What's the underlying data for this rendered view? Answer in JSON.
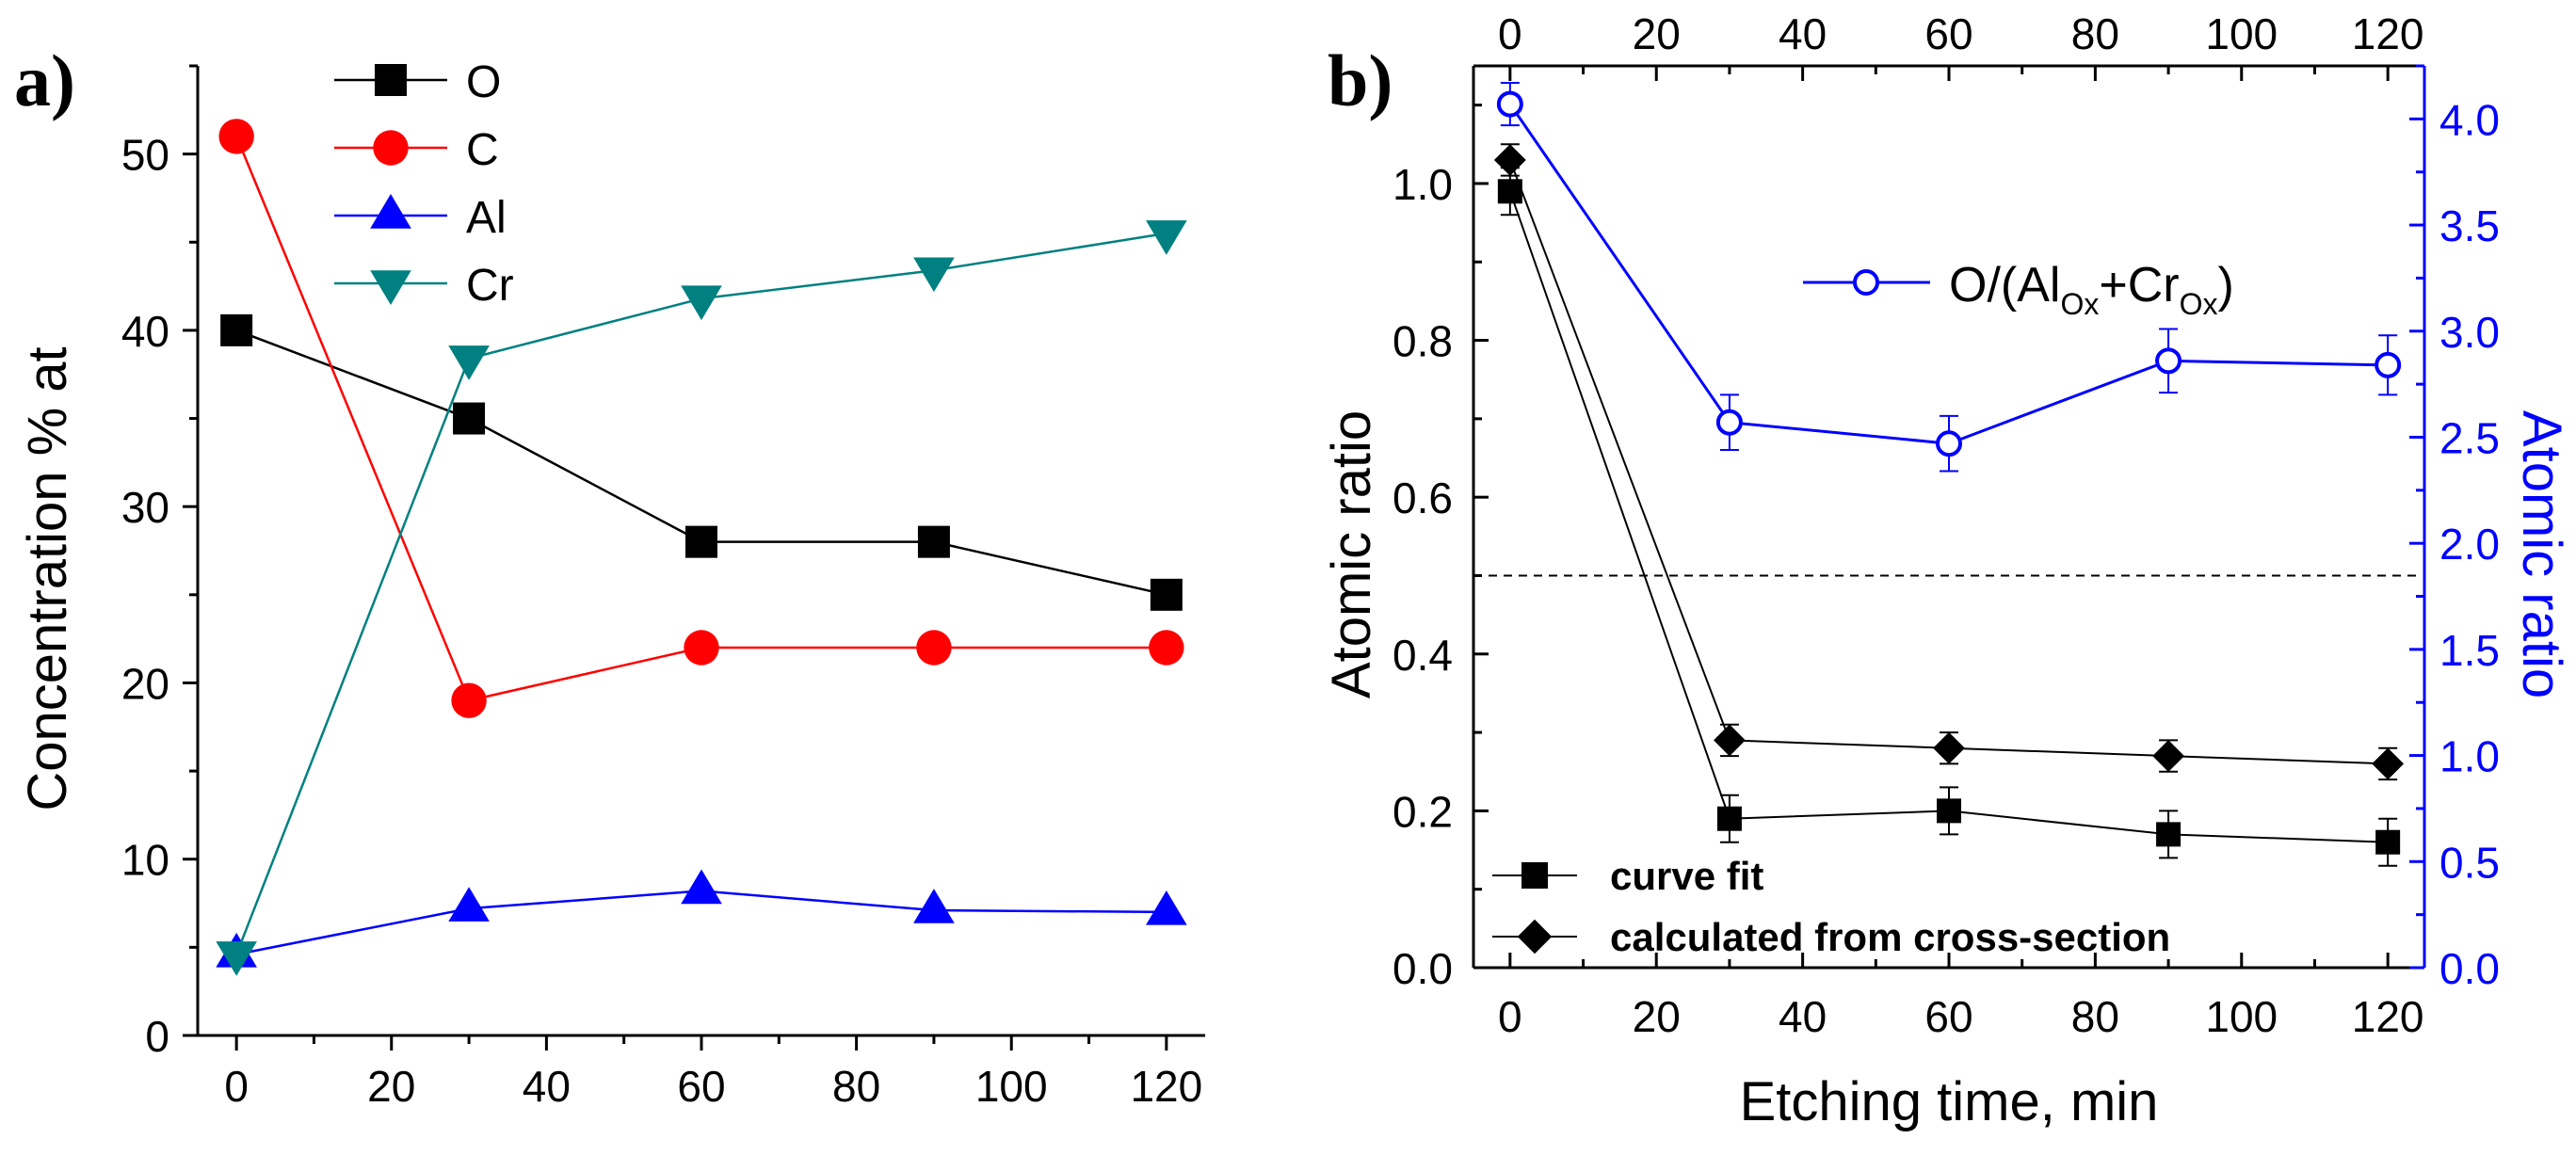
{
  "chart_data": [
    {
      "panel": "a)",
      "type": "line",
      "title": "",
      "xlabel": "",
      "ylabel": "Concentration % at",
      "xlim": [
        -5,
        125
      ],
      "ylim": [
        0,
        55
      ],
      "xticks": [
        0,
        20,
        40,
        60,
        80,
        100,
        120
      ],
      "yticks": [
        0,
        10,
        20,
        30,
        40,
        50
      ],
      "legend_position": "top-center",
      "x": [
        0,
        30,
        60,
        90,
        120
      ],
      "series": [
        {
          "name": "O",
          "marker": "square",
          "color": "#000000",
          "values": [
            40,
            35,
            28,
            28,
            25
          ]
        },
        {
          "name": "C",
          "marker": "circle",
          "color": "#ff0000",
          "values": [
            51,
            19,
            22,
            22,
            22
          ]
        },
        {
          "name": "Al",
          "marker": "triangle-up",
          "color": "#0000ff",
          "values": [
            4.6,
            7.2,
            8.2,
            7.1,
            7.0
          ]
        },
        {
          "name": "Cr",
          "marker": "triangle-down",
          "color": "#008080",
          "values": [
            4.6,
            38.4,
            41.8,
            43.4,
            45.5
          ]
        }
      ]
    },
    {
      "panel": "b)",
      "type": "line",
      "title": "",
      "xlabel": "Etching time, min",
      "ylabel": "Atomic ratio",
      "ylabel_right": "Atomic ratio",
      "xlim": [
        -5,
        125
      ],
      "ylim": [
        0,
        1.15
      ],
      "ylim_right": [
        0,
        4.25
      ],
      "xticks": [
        0,
        20,
        40,
        60,
        80,
        100,
        120
      ],
      "yticks": [
        0.0,
        0.2,
        0.4,
        0.6,
        0.8,
        1.0
      ],
      "yticks_right": [
        0.0,
        0.5,
        1.0,
        1.5,
        2.0,
        2.5,
        3.0,
        3.5,
        4.0
      ],
      "reference_line": {
        "y": 0.5,
        "style": "dashed"
      },
      "x": [
        0,
        30,
        60,
        90,
        120
      ],
      "series": [
        {
          "name": "curve fit",
          "axis": "left",
          "marker": "square",
          "color": "#000000",
          "values": [
            0.99,
            0.19,
            0.2,
            0.17,
            0.16
          ],
          "errors": [
            0.03,
            0.03,
            0.03,
            0.03,
            0.03
          ]
        },
        {
          "name": "calculated from cross-section",
          "axis": "left",
          "marker": "diamond",
          "color": "#000000",
          "values": [
            1.03,
            0.29,
            0.28,
            0.27,
            0.26
          ],
          "errors": [
            0.02,
            0.02,
            0.02,
            0.02,
            0.02
          ]
        },
        {
          "name": "O/(AlOx+CrOx)",
          "axis": "right",
          "marker": "open-circle",
          "color": "#0000ff",
          "values": [
            4.07,
            2.57,
            2.47,
            2.86,
            2.84
          ],
          "errors": [
            0.1,
            0.13,
            0.13,
            0.15,
            0.14
          ]
        }
      ],
      "legend_blue": {
        "prefix": "O/(Al",
        "sub1": "Ox",
        "mid": "+Cr",
        "sub2": "Ox",
        "suffix": ")"
      }
    }
  ]
}
